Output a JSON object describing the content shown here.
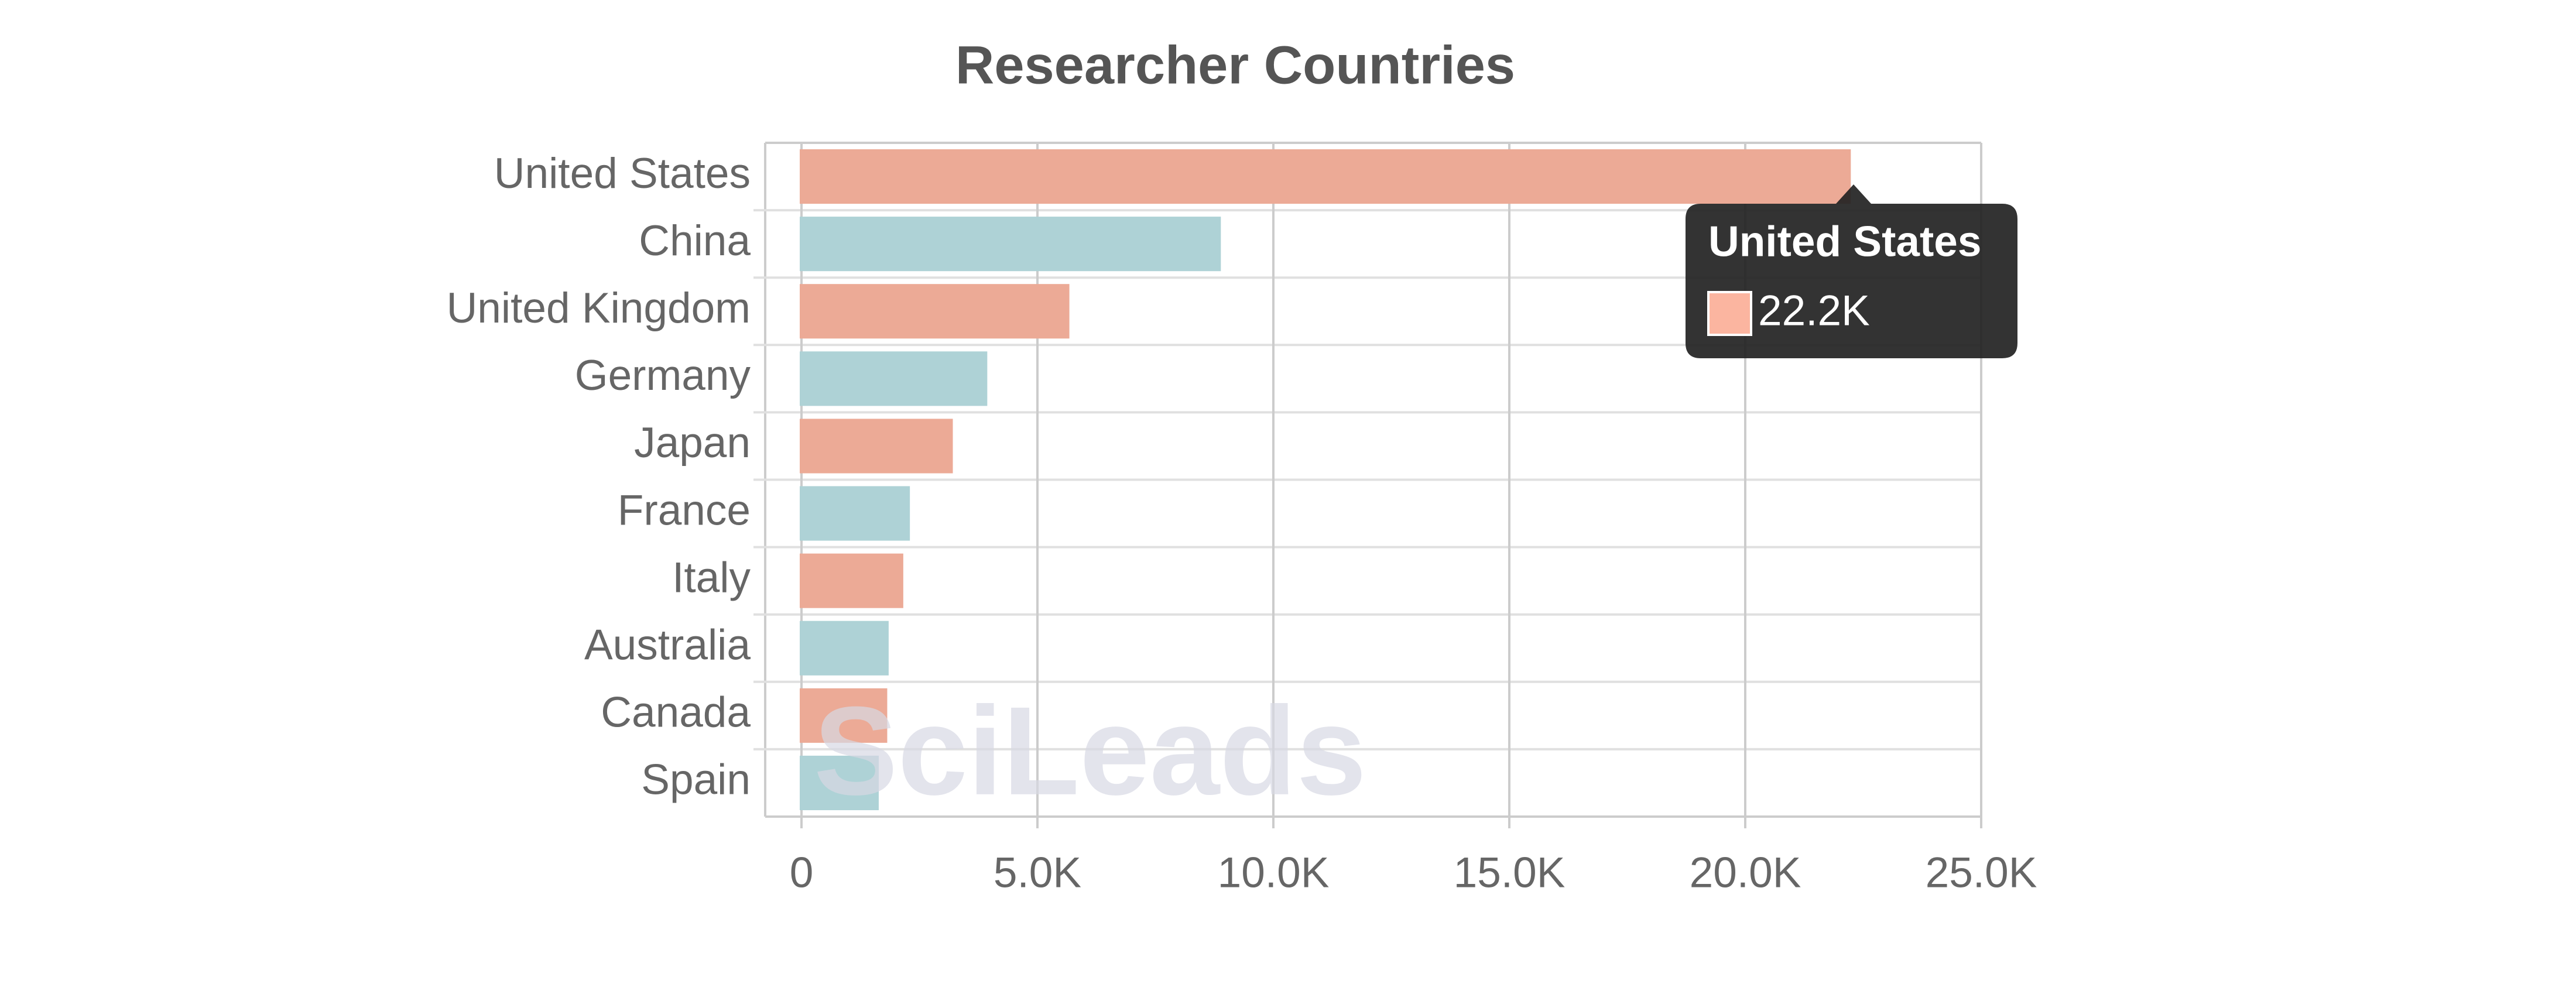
{
  "chart_data": {
    "type": "hbar",
    "title": "Researcher Countries",
    "categories": [
      "United States",
      "China",
      "United Kingdom",
      "Germany",
      "Japan",
      "France",
      "Italy",
      "Australia",
      "Canada",
      "Spain"
    ],
    "values": [
      22200,
      8850,
      5640,
      3900,
      3170,
      2260,
      2120,
      1810,
      1780,
      1600
    ],
    "colors": [
      "#fbb5a0",
      "#b9dfe4",
      "#fbb5a0",
      "#b9dfe4",
      "#fbb5a0",
      "#b9dfe4",
      "#fbb5a0",
      "#b9dfe4",
      "#fbb5a0",
      "#b9dfe4"
    ],
    "xlim": [
      0,
      25000
    ],
    "xticks": [
      0,
      {
        "value": 5000,
        "label": "5.0K"
      },
      {
        "value": 10000,
        "label": "10.0K"
      },
      {
        "value": 15000,
        "label": "15.0K"
      },
      {
        "value": 20000,
        "label": "20.0K"
      },
      {
        "value": 25000,
        "label": "25.0K"
      }
    ],
    "grid": true,
    "tooltip": {
      "label": "22.2K"
    },
    "watermark": "SciLeads"
  }
}
